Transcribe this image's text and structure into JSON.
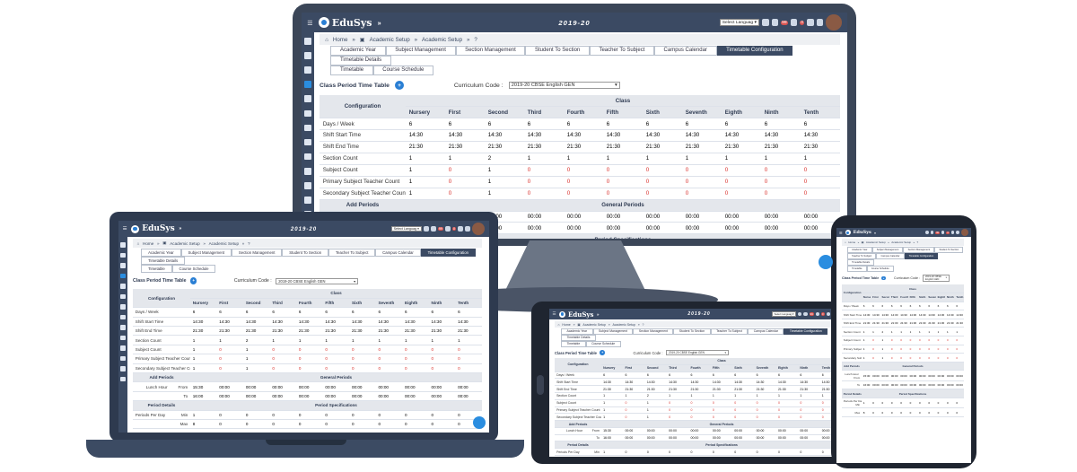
{
  "app": {
    "name": "EduSys",
    "year": "2019-20",
    "language_select": "Select Languag",
    "notif_counts": [
      "99",
      "0"
    ]
  },
  "breadcrumb": [
    "Home",
    "Academic Setup",
    "Academic Setup",
    "?"
  ],
  "tabs": [
    "Academic Year",
    "Subject Management",
    "Section Management",
    "Student To Section",
    "Teacher To Subject",
    "Campus Calendar",
    "Timetable Configuration",
    "Timetable Details",
    "Timetable",
    "Course Schedule"
  ],
  "active_tab_index": 6,
  "section": {
    "title": "Class Period Time Table",
    "curriculum_label": "Curriculum Code :",
    "curriculum_value": "2019-20 CBSE English GEN"
  },
  "table": {
    "config_header": "Configuration",
    "class_header": "Class",
    "classes": [
      "Nursery",
      "First",
      "Second",
      "Third",
      "Fourth",
      "Fifth",
      "Sixth",
      "Seventh",
      "Eighth",
      "Ninth",
      "Tenth"
    ],
    "rows": [
      {
        "label": "Days / Week",
        "values": [
          "6",
          "6",
          "6",
          "6",
          "6",
          "6",
          "6",
          "6",
          "6",
          "6",
          "6"
        ]
      },
      {
        "label": "Shift Start Time",
        "values": [
          "14:30",
          "14:30",
          "14:30",
          "14:30",
          "14:30",
          "14:30",
          "14:30",
          "14:30",
          "14:30",
          "14:30",
          "14:30"
        ]
      },
      {
        "label": "Shift End Time",
        "values": [
          "21:30",
          "21:30",
          "21:30",
          "21:30",
          "21:30",
          "21:30",
          "21:30",
          "21:30",
          "21:30",
          "21:30",
          "21:30"
        ]
      },
      {
        "label": "Section Count",
        "values": [
          "1",
          "1",
          "2",
          "1",
          "1",
          "1",
          "1",
          "1",
          "1",
          "1",
          "1"
        ]
      },
      {
        "label": "Subject Count",
        "values": [
          "1",
          "0",
          "1",
          "0",
          "0",
          "0",
          "0",
          "0",
          "0",
          "0",
          "0"
        ]
      },
      {
        "label": "Primary Subject Teacher Count",
        "values": [
          "1",
          "0",
          "1",
          "0",
          "0",
          "0",
          "0",
          "0",
          "0",
          "0",
          "0"
        ]
      },
      {
        "label": "Secondary Subject Teacher Count",
        "values": [
          "1",
          "0",
          "1",
          "0",
          "0",
          "0",
          "0",
          "0",
          "0",
          "0",
          "0"
        ]
      }
    ],
    "add_periods": "Add Periods",
    "general_periods": "General Periods",
    "lunch_hour": "Lunch Hour",
    "from_label": "From",
    "to_label": "To",
    "from_values": [
      "15:30",
      "00:00",
      "00:00",
      "00:00",
      "00:00",
      "00:00",
      "00:00",
      "00:00",
      "00:00",
      "00:00",
      "00:00"
    ],
    "to_values": [
      "16:00",
      "00:00",
      "00:00",
      "00:00",
      "00:00",
      "00:00",
      "00:00",
      "00:00",
      "00:00",
      "00:00",
      "00:00"
    ],
    "period_details": "Period Details",
    "period_specifications": "Period Specifications",
    "periods_per_day": "Periods Per Day",
    "min_label": "Min",
    "max_label": "Max",
    "min_values": [
      "1",
      "0",
      "0",
      "0",
      "0",
      "0",
      "0",
      "0",
      "0",
      "0",
      "0"
    ],
    "max_values": [
      "8",
      "0",
      "0",
      "0",
      "0",
      "0",
      "0",
      "0",
      "0",
      "0",
      "0"
    ]
  },
  "colors": {
    "topbar": "#3b4a63",
    "accent": "#2a7fd4",
    "zero": "#d9302c"
  }
}
